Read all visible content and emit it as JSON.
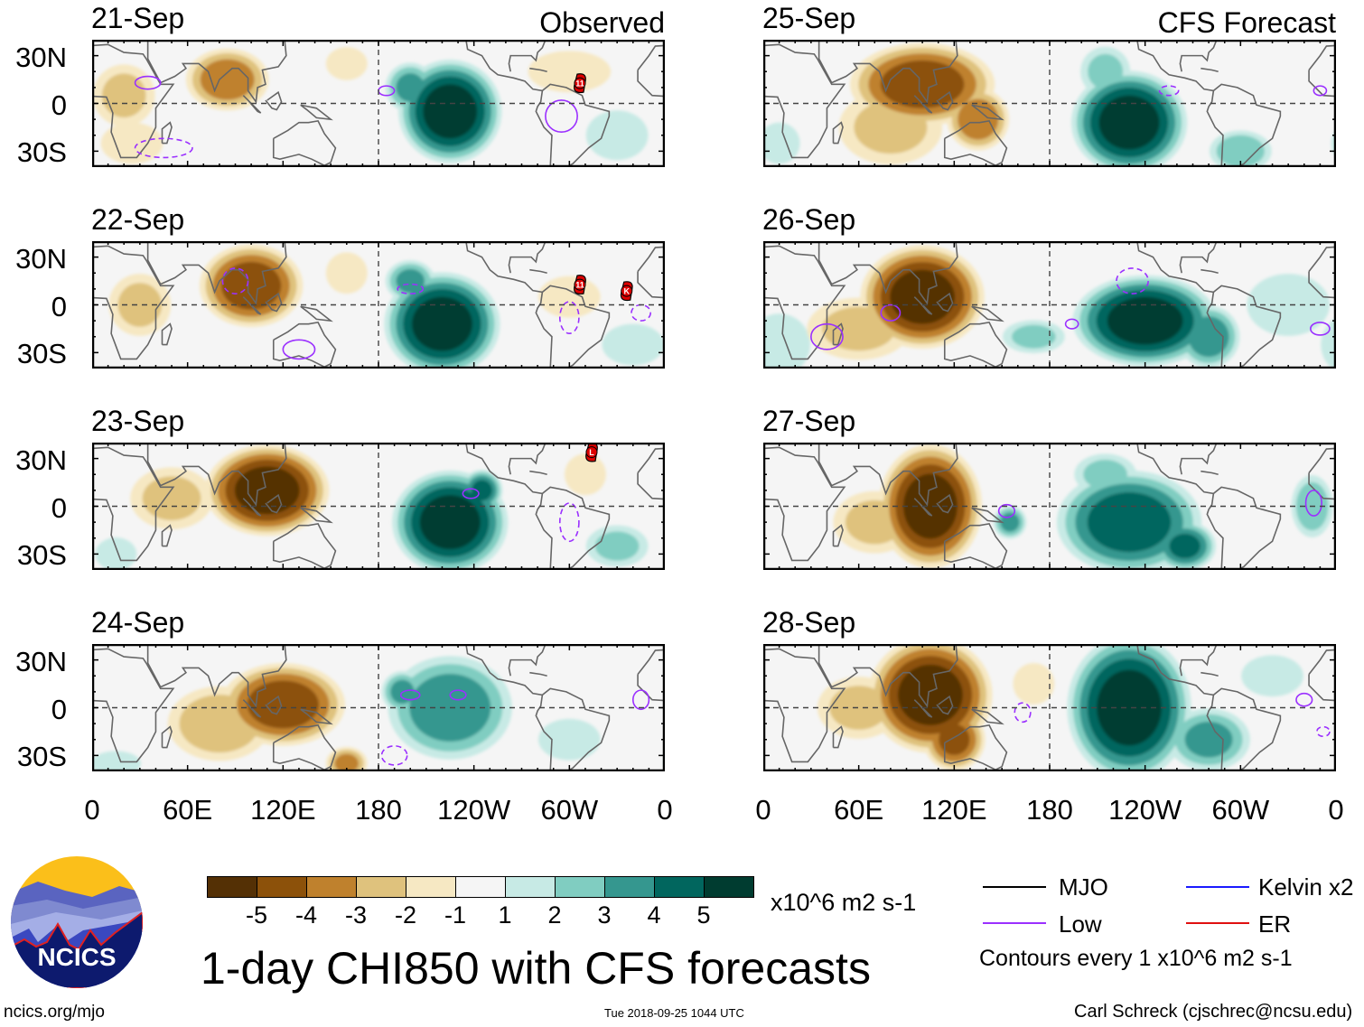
{
  "figure": {
    "title": "1-day CHI850 with CFS forecasts",
    "observed_label": "Observed",
    "forecast_label": "CFS Forecast",
    "lat_labels": [
      "30N",
      "0",
      "30S"
    ],
    "lon_labels": [
      "0",
      "60E",
      "120E",
      "180",
      "120W",
      "60W",
      "0"
    ],
    "units": "x10^6 m2 s-1",
    "contour_note": "Contours every 1 x10^6 m2 s-1",
    "website": "ncics.org/mjo",
    "timestamp": "Tue 2018-09-25 1044 UTC",
    "author": "Carl Schreck (cjschrec@ncsu.edu)",
    "logo_text": "NCICS"
  },
  "colorbar": {
    "labels": [
      "-5",
      "-4",
      "-3",
      "-2",
      "-1",
      "1",
      "2",
      "3",
      "4",
      "5"
    ],
    "colors": [
      "#543005",
      "#8c510a",
      "#bf812d",
      "#dfc27d",
      "#f6e8c3",
      "#f5f5f5",
      "#c7eae5",
      "#80cdc1",
      "#35978f",
      "#01665e",
      "#003c30"
    ]
  },
  "legend": [
    {
      "label": "MJO",
      "color": "#000000"
    },
    {
      "label": "Kelvin x2",
      "color": "#1a1aff"
    },
    {
      "label": "Low",
      "color": "#9b30ff"
    },
    {
      "label": "ER",
      "color": "#e01010"
    }
  ],
  "chart_data": {
    "type": "heatmap",
    "variable": "CHI850 anomaly",
    "lon_range": [
      0,
      360
    ],
    "lat_range": [
      -40,
      40
    ],
    "panels": [
      {
        "date": "21-Sep",
        "kind": "observed",
        "anomalies": [
          [
            20,
            5,
            15,
            15,
            -2
          ],
          [
            85,
            15,
            20,
            15,
            -3.5
          ],
          [
            225,
            -5,
            25,
            25,
            5.5
          ],
          [
            200,
            10,
            12,
            12,
            3
          ],
          [
            300,
            20,
            20,
            10,
            -1.5
          ],
          [
            25,
            -25,
            15,
            10,
            -1.5
          ],
          [
            330,
            -20,
            15,
            12,
            1.5
          ],
          [
            160,
            25,
            10,
            8,
            -1.5
          ]
        ],
        "low_contours": [
          [
            35,
            13,
            8,
            4,
            0
          ],
          [
            45,
            -28,
            18,
            6,
            1
          ],
          [
            295,
            -8,
            10,
            10,
            0
          ],
          [
            185,
            8,
            5,
            3,
            0
          ]
        ],
        "storms": [
          {
            "lon": 306.6,
            "lat": 12.7,
            "label": "11"
          }
        ]
      },
      {
        "date": "22-Sep",
        "kind": "observed",
        "anomalies": [
          [
            100,
            12,
            25,
            20,
            -4.5
          ],
          [
            30,
            0,
            15,
            15,
            -2
          ],
          [
            220,
            -12,
            28,
            25,
            5.5
          ],
          [
            200,
            15,
            12,
            10,
            3
          ],
          [
            300,
            5,
            15,
            10,
            -1.5
          ],
          [
            160,
            20,
            10,
            10,
            -1
          ],
          [
            340,
            -25,
            15,
            10,
            1.5
          ]
        ],
        "low_contours": [
          [
            90,
            15,
            8,
            8,
            1
          ],
          [
            130,
            -28,
            10,
            6,
            0
          ],
          [
            300,
            -8,
            6,
            10,
            1
          ],
          [
            345,
            -5,
            6,
            5,
            1
          ],
          [
            200,
            10,
            8,
            3,
            1
          ]
        ],
        "storms": [
          {
            "lon": 306.6,
            "lat": 12.7,
            "label": "11"
          },
          {
            "lon": 336,
            "lat": 8.7,
            "label": "K"
          }
        ]
      },
      {
        "date": "23-Sep",
        "kind": "observed",
        "anomalies": [
          [
            110,
            10,
            30,
            22,
            -5.5
          ],
          [
            50,
            5,
            20,
            15,
            -2
          ],
          [
            225,
            -10,
            28,
            25,
            5.5
          ],
          [
            245,
            10,
            10,
            10,
            4
          ],
          [
            310,
            20,
            10,
            10,
            -1
          ],
          [
            330,
            -25,
            15,
            10,
            2
          ],
          [
            15,
            -30,
            10,
            8,
            1.5
          ]
        ],
        "low_contours": [
          [
            238,
            8,
            5,
            3,
            0
          ],
          [
            300,
            -10,
            6,
            12,
            1
          ]
        ],
        "storms": [
          {
            "lon": 314,
            "lat": 34,
            "label": "L"
          }
        ]
      },
      {
        "date": "24-Sep",
        "kind": "observed",
        "anomalies": [
          [
            120,
            2,
            30,
            20,
            -4.5
          ],
          [
            80,
            -10,
            25,
            18,
            -2.5
          ],
          [
            160,
            -35,
            10,
            8,
            -3
          ],
          [
            225,
            0,
            30,
            25,
            3.5
          ],
          [
            195,
            10,
            10,
            10,
            3
          ],
          [
            300,
            -20,
            15,
            10,
            1.5
          ],
          [
            15,
            -35,
            12,
            6,
            1.5
          ]
        ],
        "low_contours": [
          [
            200,
            8,
            6,
            3,
            0
          ],
          [
            230,
            8,
            5,
            3,
            0
          ],
          [
            345,
            5,
            5,
            6,
            0
          ],
          [
            190,
            -30,
            8,
            6,
            1
          ]
        ],
        "storms": []
      },
      {
        "date": "25-Sep",
        "kind": "forecast",
        "anomalies": [
          [
            100,
            12,
            35,
            20,
            -4.5
          ],
          [
            135,
            -10,
            15,
            15,
            -3.5
          ],
          [
            80,
            -15,
            25,
            18,
            -2
          ],
          [
            230,
            -12,
            28,
            25,
            5.5
          ],
          [
            215,
            20,
            12,
            12,
            2
          ],
          [
            300,
            -30,
            15,
            10,
            2.5
          ],
          [
            10,
            -25,
            10,
            10,
            1.5
          ]
        ],
        "low_contours": [
          [
            255,
            8,
            6,
            3,
            1
          ],
          [
            350,
            8,
            4,
            3,
            0
          ]
        ],
        "storms": []
      },
      {
        "date": "26-Sep",
        "kind": "forecast",
        "anomalies": [
          [
            100,
            5,
            30,
            25,
            -5.5
          ],
          [
            60,
            -15,
            25,
            15,
            -2
          ],
          [
            240,
            -10,
            35,
            22,
            5.5
          ],
          [
            280,
            -20,
            15,
            15,
            3.5
          ],
          [
            170,
            -20,
            15,
            8,
            2
          ],
          [
            10,
            -25,
            15,
            15,
            1.5
          ],
          [
            330,
            0,
            20,
            15,
            1.5
          ]
        ],
        "low_contours": [
          [
            40,
            -20,
            10,
            8,
            0
          ],
          [
            80,
            -5,
            6,
            5,
            0
          ],
          [
            232,
            15,
            10,
            8,
            1
          ],
          [
            350,
            -15,
            6,
            4,
            0
          ],
          [
            194,
            -12,
            4,
            3,
            0
          ]
        ],
        "storms": []
      },
      {
        "date": "27-Sep",
        "kind": "forecast",
        "anomalies": [
          [
            105,
            0,
            25,
            30,
            -5.5
          ],
          [
            70,
            -10,
            20,
            15,
            -2
          ],
          [
            230,
            -10,
            35,
            25,
            4.5
          ],
          [
            265,
            -25,
            15,
            12,
            4
          ],
          [
            155,
            -10,
            8,
            8,
            3
          ],
          [
            345,
            0,
            10,
            15,
            2.5
          ],
          [
            215,
            20,
            15,
            10,
            2
          ]
        ],
        "low_contours": [
          [
            153,
            -3,
            5,
            4,
            0
          ],
          [
            346,
            2,
            5,
            8,
            0
          ]
        ],
        "storms": []
      },
      {
        "date": "28-Sep",
        "kind": "forecast",
        "anomalies": [
          [
            105,
            8,
            30,
            28,
            -5.5
          ],
          [
            120,
            -20,
            15,
            15,
            -4
          ],
          [
            60,
            0,
            20,
            15,
            -2
          ],
          [
            230,
            0,
            30,
            35,
            5.5
          ],
          [
            280,
            -20,
            20,
            15,
            3
          ],
          [
            320,
            20,
            15,
            10,
            1.5
          ],
          [
            170,
            15,
            10,
            10,
            -1.5
          ]
        ],
        "low_contours": [
          [
            163,
            -3,
            5,
            6,
            1
          ],
          [
            340,
            5,
            5,
            4,
            0
          ],
          [
            352,
            -15,
            4,
            3,
            1
          ]
        ],
        "storms": []
      }
    ]
  }
}
